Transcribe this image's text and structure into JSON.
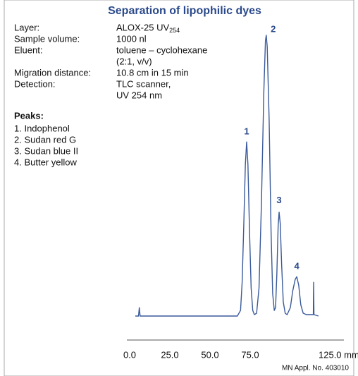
{
  "chart_data": {
    "type": "line",
    "title": "Separation of lipophilic dyes",
    "info": [
      {
        "label": "Layer:",
        "lines": [
          "ALOX-25 UV"
        ],
        "subscript": "254"
      },
      {
        "label": "Sample volume:",
        "lines": [
          "1000 nl"
        ]
      },
      {
        "label": "Eluent:",
        "lines": [
          "toluene – cyclohexane",
          "(2:1, v/v)"
        ]
      },
      {
        "label": "Migration distance:",
        "lines": [
          "10.8 cm in 15 min"
        ]
      },
      {
        "label": "Detection:",
        "lines": [
          "TLC scanner,",
          "UV 254 nm"
        ]
      }
    ],
    "peaks_title": "Peaks:",
    "peaks": [
      "1. Indophenol",
      "2. Sudan red G",
      "3. Sudan blue II",
      "4. Butter yellow"
    ],
    "annotations": [
      {
        "text": "1",
        "x": 72.8,
        "y": 62
      },
      {
        "text": "2",
        "x": 85,
        "y": 100
      },
      {
        "text": "3",
        "x": 93,
        "y": 37
      },
      {
        "text": "4",
        "x": 104,
        "y": 14
      }
    ],
    "series": [
      {
        "color": "#3a5a9a",
        "x": [
          3.5,
          5.5,
          6,
          6.5,
          10,
          30,
          50,
          67,
          69,
          70,
          71,
          72,
          72.8,
          73.6,
          74.6,
          75.6,
          76.6,
          77.6,
          79,
          80.5,
          82,
          83.5,
          84.5,
          85,
          85.6,
          86.8,
          88,
          89,
          90,
          90.8,
          91.6,
          92.4,
          93,
          93.7,
          94.6,
          95.6,
          96.8,
          98,
          100,
          101.5,
          103,
          104,
          105.2,
          106.5,
          108,
          110,
          114.3,
          114.5,
          114.7,
          117.5
        ],
        "values": [
          0,
          0,
          3,
          0,
          0,
          0,
          0,
          0,
          2,
          12,
          32,
          54,
          62,
          54,
          30,
          10,
          2,
          0.5,
          1,
          10,
          40,
          80,
          98,
          100,
          96,
          70,
          30,
          8,
          2,
          3,
          15,
          32,
          37,
          33,
          18,
          5,
          1,
          0.5,
          3,
          9,
          13,
          14,
          11,
          4,
          1,
          0.5,
          0.5,
          12,
          0.5,
          0
        ]
      }
    ],
    "xlim": [
      0,
      125
    ],
    "xticks": [
      {
        "value": 0,
        "label": "0.0"
      },
      {
        "value": 25,
        "label": "25.0"
      },
      {
        "value": 50,
        "label": "50.0"
      },
      {
        "value": 75,
        "label": "75.0"
      },
      {
        "value": 125,
        "label": "125.0 mm"
      }
    ],
    "ylim": [
      0,
      100
    ],
    "footer": "MN Appl. No. 403010"
  }
}
